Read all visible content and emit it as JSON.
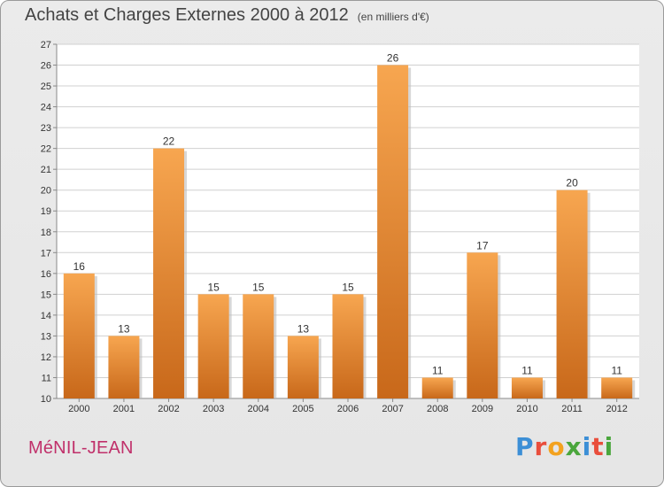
{
  "header": {
    "title": "Achats et Charges Externes 2000 à 2012",
    "unit": "(en milliers d'€)"
  },
  "footer": {
    "commune": "MéNIL-JEAN",
    "logo_text": "Proxiti"
  },
  "colors": {
    "bar_top": "#f7a650",
    "bar_bottom": "#c8681a",
    "grid": "#d0d0d0",
    "axis": "#888888"
  },
  "chart_data": {
    "type": "bar",
    "title": "Achats et Charges Externes 2000 à 2012",
    "subtitle": "(en milliers d'€)",
    "categories": [
      "2000",
      "2001",
      "2002",
      "2003",
      "2004",
      "2005",
      "2006",
      "2007",
      "2008",
      "2009",
      "2010",
      "2011",
      "2012"
    ],
    "values": [
      16,
      13,
      22,
      15,
      15,
      13,
      15,
      26,
      11,
      17,
      11,
      20,
      11
    ],
    "ylim": [
      10,
      27
    ],
    "yticks": [
      10,
      11,
      12,
      13,
      14,
      15,
      16,
      17,
      18,
      19,
      20,
      21,
      22,
      23,
      24,
      25,
      26,
      27
    ],
    "grid": true,
    "xlabel": "",
    "ylabel": ""
  }
}
